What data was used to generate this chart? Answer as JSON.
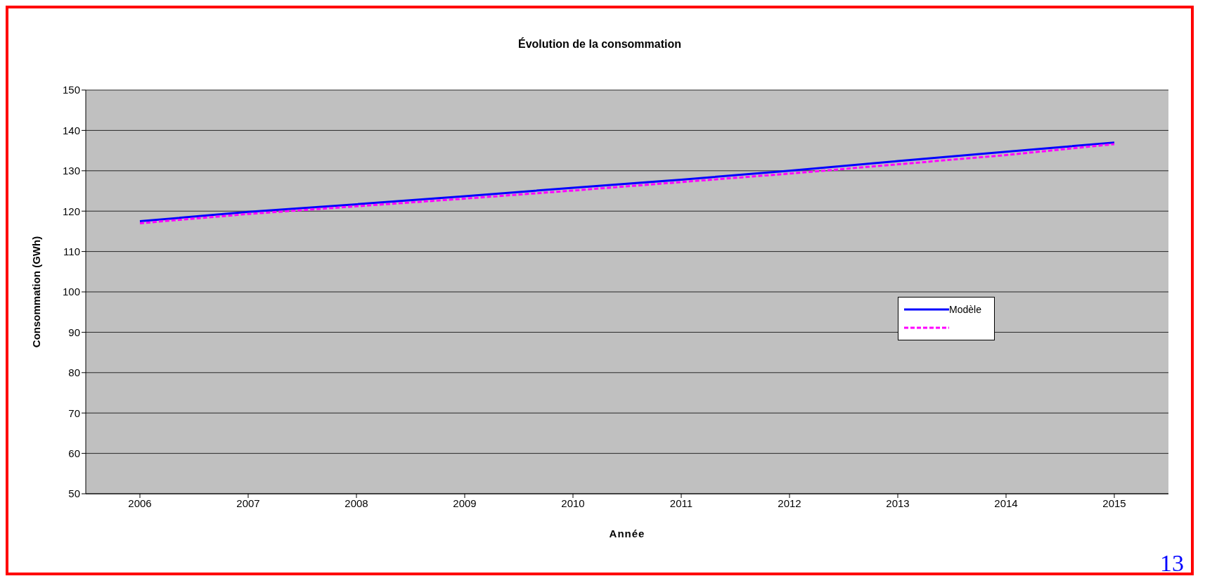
{
  "chart_data": {
    "type": "line",
    "title": "Évolution de la consommation",
    "xlabel": "Année",
    "ylabel": "Consommation (GWh)",
    "categories": [
      "2006",
      "2007",
      "2008",
      "2009",
      "2010",
      "2011",
      "2012",
      "2013",
      "2014",
      "2015"
    ],
    "series": [
      {
        "name": "Modèle",
        "color": "#0000ff",
        "line_style": "solid",
        "values": [
          117.5,
          119.8,
          121.7,
          123.7,
          125.8,
          127.8,
          130.0,
          132.4,
          134.7,
          137.0
        ]
      },
      {
        "color": "#ff00ff",
        "line_style": "dashed",
        "values": [
          117.0,
          119.3,
          121.2,
          123.1,
          125.1,
          127.2,
          129.3,
          131.6,
          133.9,
          136.6
        ]
      }
    ],
    "ylim": [
      50,
      150
    ],
    "yticks": [
      50,
      60,
      70,
      80,
      90,
      100,
      110,
      120,
      130,
      140,
      150
    ],
    "grid": "y",
    "legend": "right",
    "marker": "none",
    "annotations": [
      "13"
    ]
  }
}
